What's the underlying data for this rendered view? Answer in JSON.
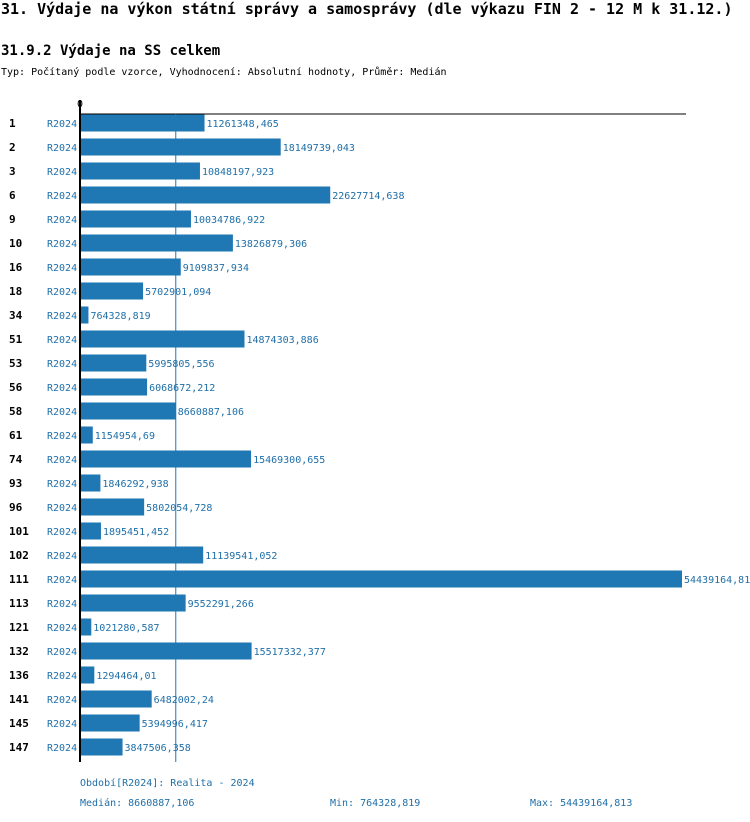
{
  "header": {
    "title": "31. Výdaje na výkon státní správy a samosprávy (dle výkazu FIN 2 - 12 M k 31.12.)",
    "subtitle": "31.9.2 Výdaje na SS celkem",
    "info": "Typ: Počítaný podle vzorce, Vyhodnocení: Absolutní hodnoty, Průměr: Medián"
  },
  "colors": {
    "bar": "#1f77b4",
    "label": "#1f6fa8",
    "axis": "#000000",
    "median_line": "#1f77b4"
  },
  "chart_data": {
    "type": "bar",
    "orientation": "horizontal",
    "axis_zero_label": "0",
    "period_label": "R2024",
    "xlim": [
      0,
      54439164.813
    ],
    "median": 8660887.106,
    "rows": [
      {
        "id": "1",
        "period": "R2024",
        "value": 11261348.465,
        "label": "11261348,465"
      },
      {
        "id": "2",
        "period": "R2024",
        "value": 18149739.043,
        "label": "18149739,043"
      },
      {
        "id": "3",
        "period": "R2024",
        "value": 10848197.923,
        "label": "10848197,923"
      },
      {
        "id": "6",
        "period": "R2024",
        "value": 22627714.638,
        "label": "22627714,638"
      },
      {
        "id": "9",
        "period": "R2024",
        "value": 10034786.922,
        "label": "10034786,922"
      },
      {
        "id": "10",
        "period": "R2024",
        "value": 13826879.306,
        "label": "13826879,306"
      },
      {
        "id": "16",
        "period": "R2024",
        "value": 9109837.934,
        "label": "9109837,934"
      },
      {
        "id": "18",
        "period": "R2024",
        "value": 5702901.094,
        "label": "5702901,094"
      },
      {
        "id": "34",
        "period": "R2024",
        "value": 764328.819,
        "label": "764328,819"
      },
      {
        "id": "51",
        "period": "R2024",
        "value": 14874303.886,
        "label": "14874303,886"
      },
      {
        "id": "53",
        "period": "R2024",
        "value": 5995805.556,
        "label": "5995805,556"
      },
      {
        "id": "56",
        "period": "R2024",
        "value": 6068672.212,
        "label": "6068672,212"
      },
      {
        "id": "58",
        "period": "R2024",
        "value": 8660887.106,
        "label": "8660887,106"
      },
      {
        "id": "61",
        "period": "R2024",
        "value": 1154954.69,
        "label": "1154954,69"
      },
      {
        "id": "74",
        "period": "R2024",
        "value": 15469300.655,
        "label": "15469300,655"
      },
      {
        "id": "93",
        "period": "R2024",
        "value": 1846292.938,
        "label": "1846292,938"
      },
      {
        "id": "96",
        "period": "R2024",
        "value": 5802054.728,
        "label": "5802054,728"
      },
      {
        "id": "101",
        "period": "R2024",
        "value": 1895451.452,
        "label": "1895451,452"
      },
      {
        "id": "102",
        "period": "R2024",
        "value": 11139541.052,
        "label": "11139541,052"
      },
      {
        "id": "111",
        "period": "R2024",
        "value": 54439164.813,
        "label": "54439164,81"
      },
      {
        "id": "113",
        "period": "R2024",
        "value": 9552291.266,
        "label": "9552291,266"
      },
      {
        "id": "121",
        "period": "R2024",
        "value": 1021280.587,
        "label": "1021280,587"
      },
      {
        "id": "132",
        "period": "R2024",
        "value": 15517332.377,
        "label": "15517332,377"
      },
      {
        "id": "136",
        "period": "R2024",
        "value": 1294464.01,
        "label": "1294464,01"
      },
      {
        "id": "141",
        "period": "R2024",
        "value": 6482002.24,
        "label": "6482002,24"
      },
      {
        "id": "145",
        "period": "R2024",
        "value": 5394996.417,
        "label": "5394996,417"
      },
      {
        "id": "147",
        "period": "R2024",
        "value": 3847506.358,
        "label": "3847506,358"
      }
    ]
  },
  "footer": {
    "period": "Období[R2024]: Realita - 2024",
    "median": "Medián: 8660887,106",
    "min": "Min: 764328,819",
    "max": "Max: 54439164,813"
  }
}
